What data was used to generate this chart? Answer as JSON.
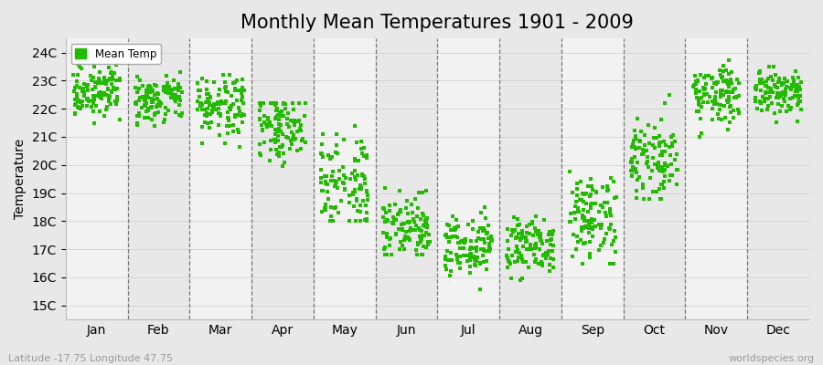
{
  "title": "Monthly Mean Temperatures 1901 - 2009",
  "ylabel": "Temperature",
  "xlabel_labels": [
    "Jan",
    "Feb",
    "Mar",
    "Apr",
    "May",
    "Jun",
    "Jul",
    "Aug",
    "Sep",
    "Oct",
    "Nov",
    "Dec"
  ],
  "ytick_labels": [
    "15C",
    "16C",
    "17C",
    "18C",
    "19C",
    "20C",
    "21C",
    "22C",
    "23C",
    "24C"
  ],
  "ytick_values": [
    15,
    16,
    17,
    18,
    19,
    20,
    21,
    22,
    23,
    24
  ],
  "ylim": [
    14.5,
    24.5
  ],
  "dot_color": "#22bb00",
  "bg_color": "#e8e8e8",
  "plot_bg_color": "#f2f2f2",
  "legend_label": "Mean Temp",
  "footer_left": "Latitude -17.75 Longitude 47.75",
  "footer_right": "worldspecies.org",
  "title_fontsize": 15,
  "label_fontsize": 10,
  "tick_fontsize": 10,
  "marker_size": 3.5,
  "n_years": 109,
  "monthly_means": [
    22.6,
    22.4,
    22.1,
    21.4,
    19.5,
    17.8,
    17.1,
    17.1,
    18.2,
    20.2,
    22.5,
    22.6
  ],
  "monthly_stds": [
    0.4,
    0.45,
    0.55,
    0.65,
    0.85,
    0.7,
    0.55,
    0.55,
    0.8,
    0.8,
    0.55,
    0.45
  ],
  "monthly_ranges": [
    [
      21.5,
      23.6
    ],
    [
      21.2,
      23.3
    ],
    [
      20.5,
      23.2
    ],
    [
      19.8,
      22.2
    ],
    [
      18.0,
      21.4
    ],
    [
      16.8,
      20.5
    ],
    [
      15.0,
      18.5
    ],
    [
      15.3,
      18.5
    ],
    [
      16.5,
      21.0
    ],
    [
      18.8,
      22.5
    ],
    [
      21.0,
      23.8
    ],
    [
      21.5,
      23.5
    ]
  ]
}
